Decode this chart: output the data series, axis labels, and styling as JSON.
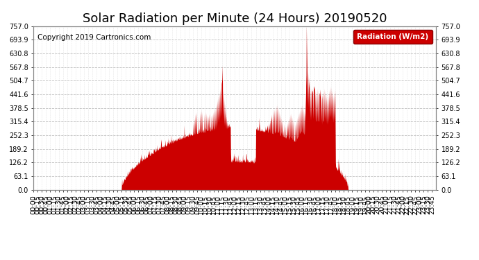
{
  "title": "Solar Radiation per Minute (24 Hours) 20190520",
  "copyright_text": "Copyright 2019 Cartronics.com",
  "legend_label": "Radiation (W/m2)",
  "legend_bg": "#cc0000",
  "legend_fg": "#ffffff",
  "fill_color": "#cc0000",
  "line_color": "#cc0000",
  "background_color": "#ffffff",
  "grid_color": "#bbbbbb",
  "ymin": 0.0,
  "ymax": 757.0,
  "yticks": [
    0.0,
    63.1,
    126.2,
    189.2,
    252.3,
    315.4,
    378.5,
    441.6,
    504.7,
    567.8,
    630.8,
    693.9,
    757.0
  ],
  "title_fontsize": 13,
  "axis_fontsize": 7,
  "copyright_fontsize": 7.5,
  "figsize": [
    6.9,
    3.75
  ],
  "dpi": 100
}
